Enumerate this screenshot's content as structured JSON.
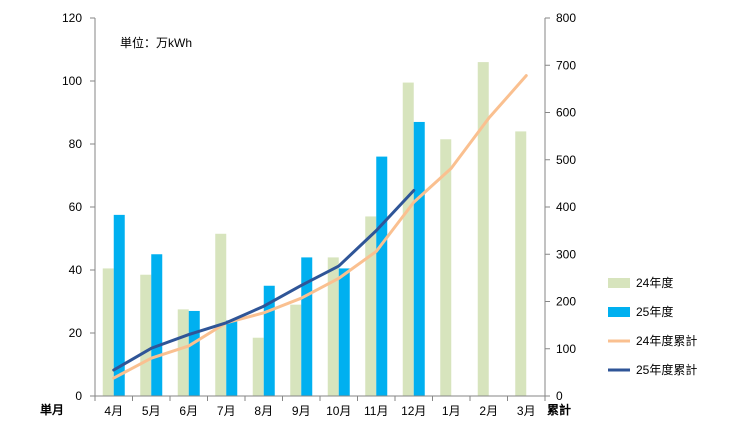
{
  "chart_data": {
    "type": "bar",
    "unit_note": "単位：万kWh",
    "categories": [
      "4月",
      "5月",
      "6月",
      "7月",
      "8月",
      "9月",
      "10月",
      "11月",
      "12月",
      "1月",
      "2月",
      "3月"
    ],
    "x_axis_left_label": "単月",
    "x_axis_right_label": "累計",
    "y_left": {
      "min": 0,
      "max": 120,
      "ticks": [
        0,
        20,
        40,
        60,
        80,
        100,
        120
      ]
    },
    "y_right": {
      "min": 0,
      "max": 800,
      "ticks": [
        0,
        100,
        200,
        300,
        400,
        500,
        600,
        700,
        800
      ]
    },
    "bar_series": [
      {
        "name": "24年度",
        "color": "#d7e4bd",
        "values": [
          40.5,
          38.5,
          27.5,
          51.5,
          18.5,
          29,
          44,
          57,
          99.5,
          81.5,
          106,
          84
        ]
      },
      {
        "name": "25年度",
        "color": "#00b0f0",
        "values": [
          57.5,
          45,
          27,
          24,
          35,
          44,
          40.5,
          76,
          87,
          null,
          null,
          null
        ]
      }
    ],
    "line_series": [
      {
        "name": "24年度累計",
        "color": "#fac090",
        "values": [
          38,
          80,
          106,
          155,
          176,
          207,
          249,
          306,
          410,
          482,
          588,
          678
        ]
      },
      {
        "name": "25年度累計",
        "color": "#2f5597",
        "values": [
          55,
          101,
          130,
          155,
          190,
          234,
          275,
          350,
          435,
          null,
          null,
          null
        ]
      }
    ],
    "legend": [
      "24年度",
      "25年度",
      "24年度累計",
      "25年度累計"
    ],
    "legend_position": "right"
  }
}
